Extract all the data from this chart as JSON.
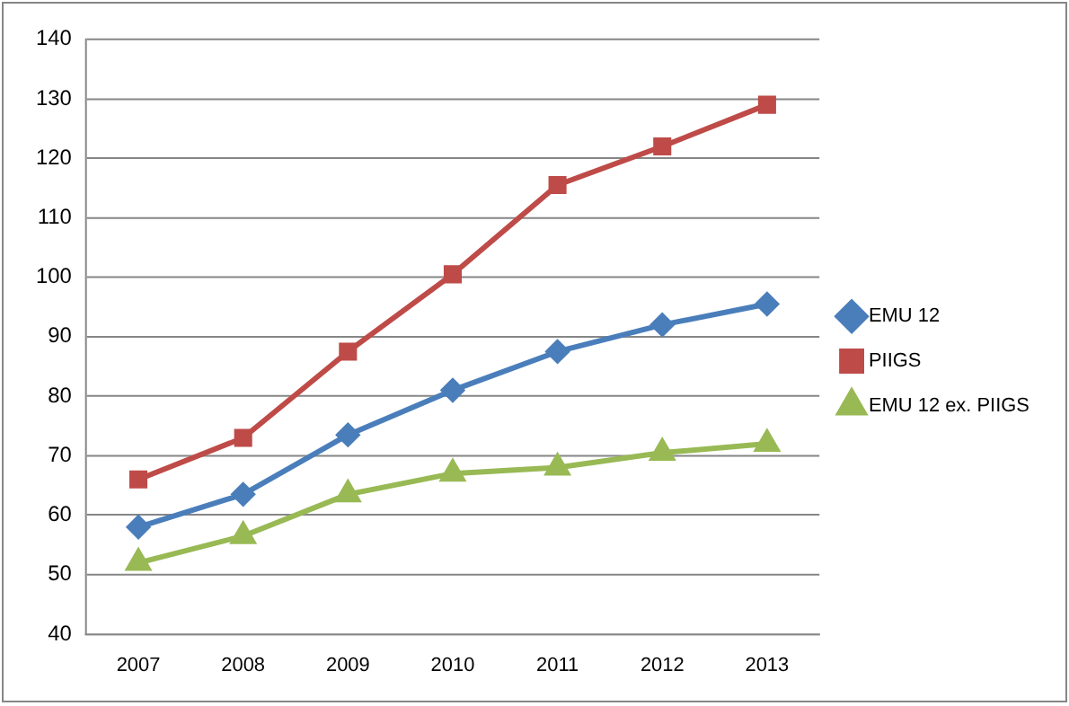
{
  "chart_data": {
    "type": "line",
    "categories": [
      "2007",
      "2008",
      "2009",
      "2010",
      "2011",
      "2012",
      "2013"
    ],
    "series": [
      {
        "name": "EMU 12",
        "color": "#4a7ebb",
        "marker": "diamond",
        "values": [
          58,
          63.5,
          73.5,
          81,
          87.5,
          92,
          95.5
        ]
      },
      {
        "name": "PIIGS",
        "color": "#be4b48",
        "marker": "square",
        "values": [
          66,
          73,
          87.5,
          100.5,
          115.5,
          122,
          129
        ]
      },
      {
        "name": "EMU 12 ex. PIIGS",
        "color": "#98b954",
        "marker": "triangle",
        "values": [
          52,
          56.5,
          63.5,
          67,
          68,
          70.5,
          72
        ]
      }
    ],
    "ylim": [
      40,
      140
    ],
    "yticks": [
      40,
      50,
      60,
      70,
      80,
      90,
      100,
      110,
      120,
      130,
      140
    ],
    "grid": "y",
    "legend": "right",
    "line_style": "solid"
  }
}
